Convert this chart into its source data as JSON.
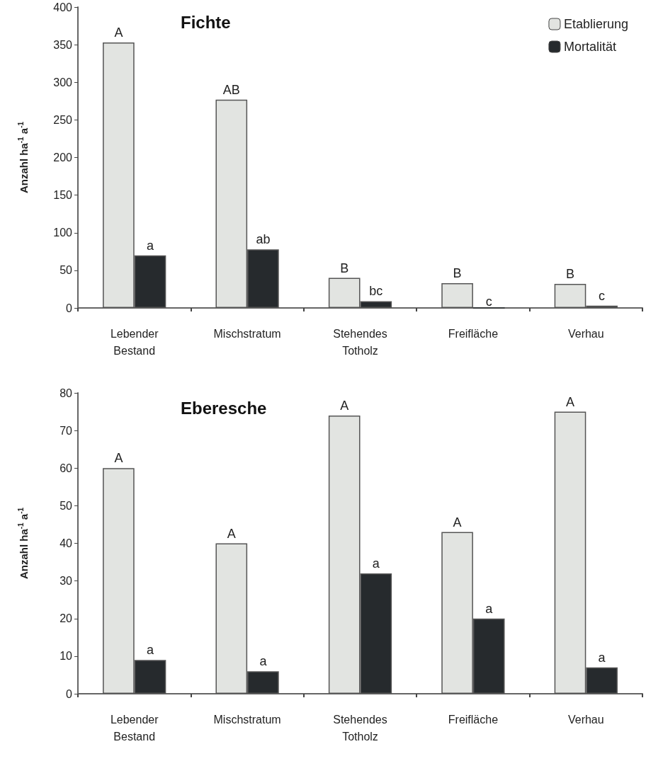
{
  "chart_data": [
    {
      "type": "bar",
      "title": "Fichte",
      "ylabel": "Anzahl ha$^{-1}$ a$^{-1}$",
      "categories": [
        "Lebender Bestand",
        "Mischstratum",
        "Stehendes Totholz",
        "Freifläche",
        "Verhau"
      ],
      "series": [
        {
          "name": "Etablierung",
          "color": "#e2e4e1",
          "values": [
            353,
            277,
            40,
            33,
            32
          ],
          "value_labels": [
            "A",
            "AB",
            "B",
            "B",
            "B"
          ]
        },
        {
          "name": "Mortalität",
          "color": "#262a2d",
          "values": [
            70,
            78,
            9,
            0,
            3
          ],
          "value_labels": [
            "a",
            "ab",
            "bc",
            "c",
            "c"
          ]
        }
      ],
      "ylim": [
        0,
        400
      ],
      "yticks": [
        0,
        50,
        100,
        150,
        200,
        250,
        300,
        350,
        400
      ],
      "grid": false,
      "legend": "top right"
    },
    {
      "type": "bar",
      "title": "Eberesche",
      "ylabel": "Anzahl ha$^{-1}$ a$^{-1}$",
      "categories": [
        "Lebender Bestand",
        "Mischstratum",
        "Stehendes Totholz",
        "Freifläche",
        "Verhau"
      ],
      "series": [
        {
          "color": "#e2e4e1",
          "values": [
            60,
            40,
            74,
            43,
            75
          ],
          "value_labels": [
            "A",
            "A",
            "A",
            "A",
            "A"
          ]
        },
        {
          "color": "#262a2d",
          "values": [
            9,
            6,
            32,
            20,
            7
          ],
          "value_labels": [
            "a",
            "a",
            "a",
            "a",
            "a"
          ]
        }
      ],
      "ylim": [
        0,
        80
      ],
      "yticks": [
        0,
        10,
        20,
        30,
        40,
        50,
        60,
        70,
        80
      ],
      "grid": false,
      "legend": false
    }
  ]
}
